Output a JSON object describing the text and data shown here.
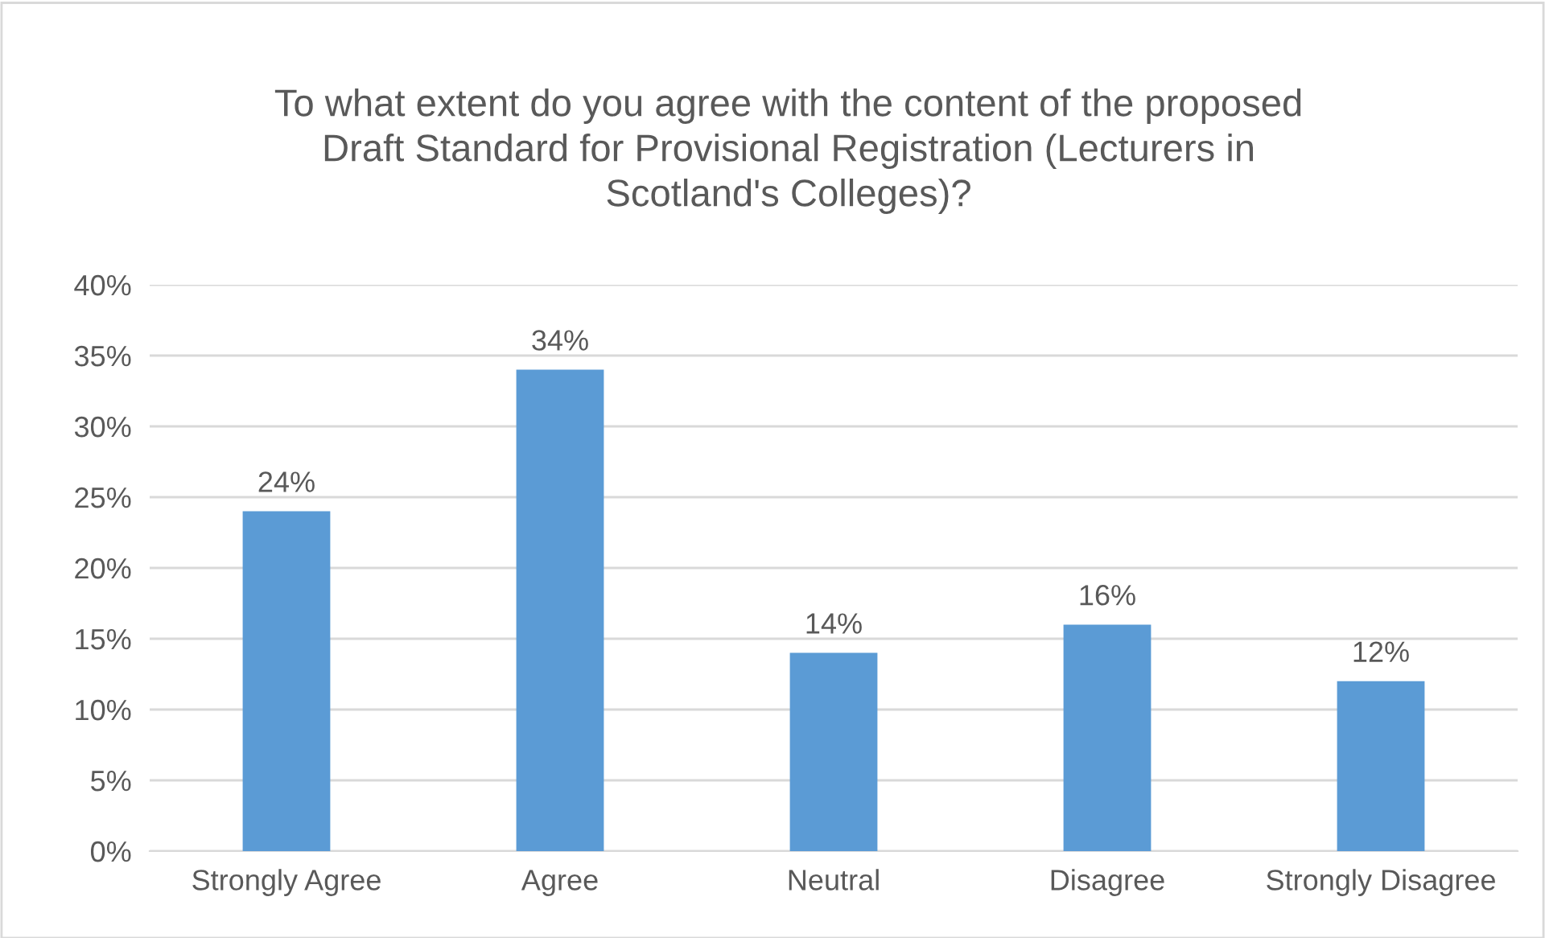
{
  "chart_data": {
    "type": "bar",
    "title": "To what extent do you agree with the content of the proposed\nDraft Standard for Provisional Registration (Lecturers in\nScotland's Colleges)?",
    "categories": [
      "Strongly Agree",
      "Agree",
      "Neutral",
      "Disagree",
      "Strongly Disagree"
    ],
    "values": [
      24,
      34,
      14,
      16,
      12
    ],
    "value_labels": [
      "24%",
      "34%",
      "14%",
      "16%",
      "12%"
    ],
    "color": "#5b9bd5",
    "ylim": [
      0,
      40
    ],
    "yticks": [
      {
        "value": 0,
        "label": "0%"
      },
      {
        "value": 5,
        "label": "5%"
      },
      {
        "value": 10,
        "label": "10%"
      },
      {
        "value": 15,
        "label": "15%"
      },
      {
        "value": 20,
        "label": "20%"
      },
      {
        "value": 25,
        "label": "25%"
      },
      {
        "value": 30,
        "label": "30%"
      },
      {
        "value": 35,
        "label": "35%"
      },
      {
        "value": 40,
        "label": "40%"
      }
    ],
    "grid": "y"
  }
}
